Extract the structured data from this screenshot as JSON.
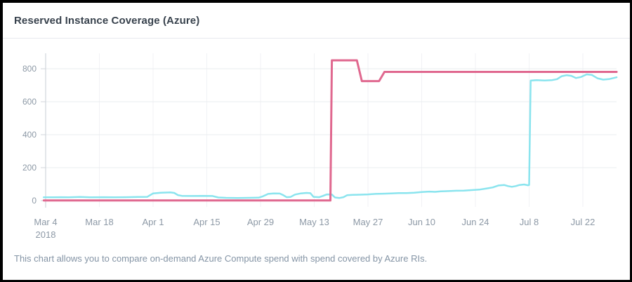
{
  "window": {
    "title": "Reserved Instance Coverage (Azure)"
  },
  "footer": {
    "description": "This chart allows you to compare on-demand Azure Compute spend with spend covered by Azure RIs."
  },
  "style": {
    "pink": "#e0688f",
    "cyan": "#8ae4ee",
    "grid_h": "#eaecef",
    "grid_v": "#f1f2f5",
    "axis": "#d0d5db",
    "label": "#8d99a6",
    "title_color": "#38424d",
    "footer_color": "#8494a5",
    "border": "#000000",
    "background": "#ffffff"
  },
  "chart_data": {
    "type": "line",
    "title": "Reserved Instance Coverage (Azure)",
    "xlabel": "",
    "ylabel": "",
    "x_unit": "days since Mar 4, 2018",
    "xlim": [
      -0.5,
      148.8
    ],
    "ylim": [
      0,
      900
    ],
    "grid": true,
    "legend": "none",
    "y_ticks": [
      0,
      200,
      400,
      600,
      800
    ],
    "x_ticks": [
      {
        "day": 0,
        "label": "Mar 4",
        "sublabel": "2018"
      },
      {
        "day": 14,
        "label": "Mar 18"
      },
      {
        "day": 28,
        "label": "Apr 1"
      },
      {
        "day": 42,
        "label": "Apr 15"
      },
      {
        "day": 56,
        "label": "Apr 29"
      },
      {
        "day": 70,
        "label": "May 13"
      },
      {
        "day": 84,
        "label": "May 27"
      },
      {
        "day": 98,
        "label": "Jun 10"
      },
      {
        "day": 112,
        "label": "Jun 24"
      },
      {
        "day": 126,
        "label": "Jul 8"
      },
      {
        "day": 140,
        "label": "Jul 22"
      }
    ],
    "series": [
      {
        "id": "cyan_line",
        "name": "cyan series",
        "color_key": "cyan",
        "stroke_width": 2.5,
        "points": [
          [
            -0.5,
            20
          ],
          [
            2,
            20
          ],
          [
            4,
            21
          ],
          [
            6,
            20
          ],
          [
            9,
            22
          ],
          [
            12,
            20
          ],
          [
            15,
            21
          ],
          [
            18,
            20
          ],
          [
            21,
            21
          ],
          [
            24,
            22
          ],
          [
            26.5,
            23
          ],
          [
            28,
            44
          ],
          [
            30,
            48
          ],
          [
            32.5,
            50
          ],
          [
            33.5,
            47
          ],
          [
            34.5,
            33
          ],
          [
            35.5,
            29
          ],
          [
            38,
            28
          ],
          [
            41,
            29
          ],
          [
            43.5,
            28
          ],
          [
            45,
            19
          ],
          [
            47,
            17
          ],
          [
            50,
            16
          ],
          [
            53,
            17
          ],
          [
            55.5,
            18
          ],
          [
            56.5,
            25
          ],
          [
            58,
            41
          ],
          [
            59.5,
            44
          ],
          [
            61,
            43
          ],
          [
            61.8,
            35
          ],
          [
            62.8,
            21
          ],
          [
            63.8,
            22
          ],
          [
            65,
            37
          ],
          [
            66.5,
            44
          ],
          [
            68,
            47
          ],
          [
            69,
            45
          ],
          [
            69.8,
            23
          ],
          [
            71.3,
            21
          ],
          [
            72.3,
            29
          ],
          [
            73.3,
            38
          ],
          [
            74.6,
            37
          ],
          [
            75.4,
            19
          ],
          [
            76.6,
            16
          ],
          [
            77.6,
            21
          ],
          [
            78.6,
            33
          ],
          [
            80,
            35
          ],
          [
            82,
            36
          ],
          [
            84,
            38
          ],
          [
            86,
            41
          ],
          [
            88,
            42
          ],
          [
            90,
            44
          ],
          [
            92,
            46
          ],
          [
            94,
            46
          ],
          [
            96,
            48
          ],
          [
            98,
            52
          ],
          [
            100,
            55
          ],
          [
            101.5,
            53
          ],
          [
            103,
            56
          ],
          [
            105,
            58
          ],
          [
            107,
            60
          ],
          [
            109,
            61
          ],
          [
            111,
            64
          ],
          [
            113,
            67
          ],
          [
            115,
            74
          ],
          [
            116.5,
            80
          ],
          [
            118,
            92
          ],
          [
            119.5,
            95
          ],
          [
            120.5,
            88
          ],
          [
            121.5,
            84
          ],
          [
            122.5,
            88
          ],
          [
            123.5,
            95
          ],
          [
            124.7,
            98
          ],
          [
            125.7,
            93
          ],
          [
            126,
            95
          ],
          [
            126.4,
            728
          ],
          [
            128,
            731
          ],
          [
            130,
            729
          ],
          [
            132,
            731
          ],
          [
            133.3,
            737
          ],
          [
            134.5,
            755
          ],
          [
            135.8,
            761
          ],
          [
            137,
            757
          ],
          [
            138.2,
            744
          ],
          [
            139.5,
            750
          ],
          [
            141,
            766
          ],
          [
            142.3,
            763
          ],
          [
            143.8,
            742
          ],
          [
            145.3,
            734
          ],
          [
            146.8,
            737
          ],
          [
            148.8,
            748
          ]
        ]
      },
      {
        "id": "pink_line",
        "name": "pink series",
        "color_key": "pink",
        "stroke_width": 3,
        "points": [
          [
            -0.5,
            1
          ],
          [
            74.2,
            1
          ],
          [
            74.6,
            851
          ],
          [
            81.1,
            851
          ],
          [
            82.4,
            725
          ],
          [
            86.9,
            725
          ],
          [
            88.3,
            781
          ],
          [
            148.8,
            781
          ]
        ]
      }
    ]
  }
}
